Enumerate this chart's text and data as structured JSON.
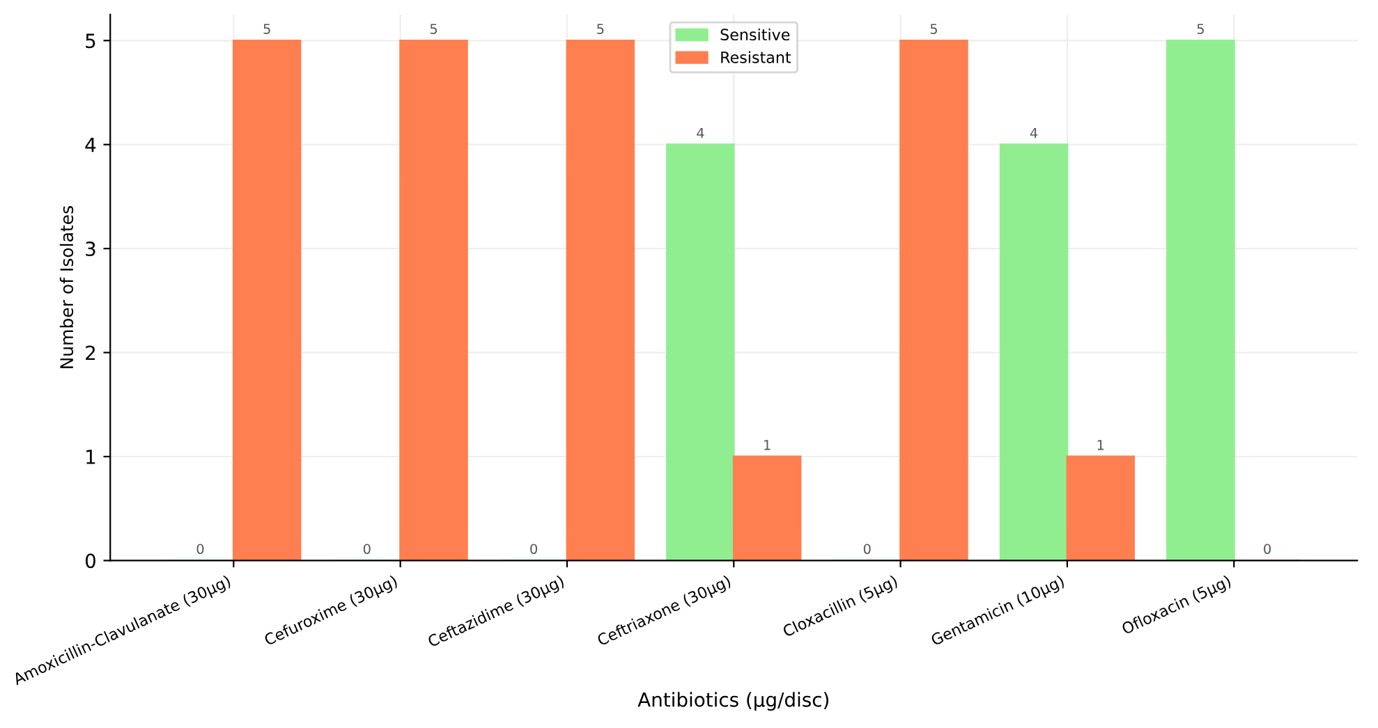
{
  "chart_data": {
    "type": "bar",
    "xlabel": "Antibiotics (µg/disc)",
    "ylabel": "Number of Isolates",
    "categories": [
      "Amoxicillin-Clavulanate (30µg)",
      "Cefuroxime (30µg)",
      "Ceftazidime (30µg)",
      "Ceftriaxone (30µg)",
      "Cloxacillin (5µg)",
      "Gentamicin (10µg)",
      "Ofloxacin (5µg)"
    ],
    "series": [
      {
        "name": "Sensitive",
        "color": "#90ee90",
        "values": [
          0,
          0,
          0,
          4,
          0,
          4,
          5
        ]
      },
      {
        "name": "Resistant",
        "color": "#ff7f50",
        "values": [
          5,
          5,
          5,
          1,
          5,
          1,
          0
        ]
      }
    ],
    "ylim": [
      0,
      5.25
    ],
    "yticks": [
      0,
      1,
      2,
      3,
      4,
      5
    ],
    "grid": true,
    "legend": "top",
    "data_labels": true
  }
}
